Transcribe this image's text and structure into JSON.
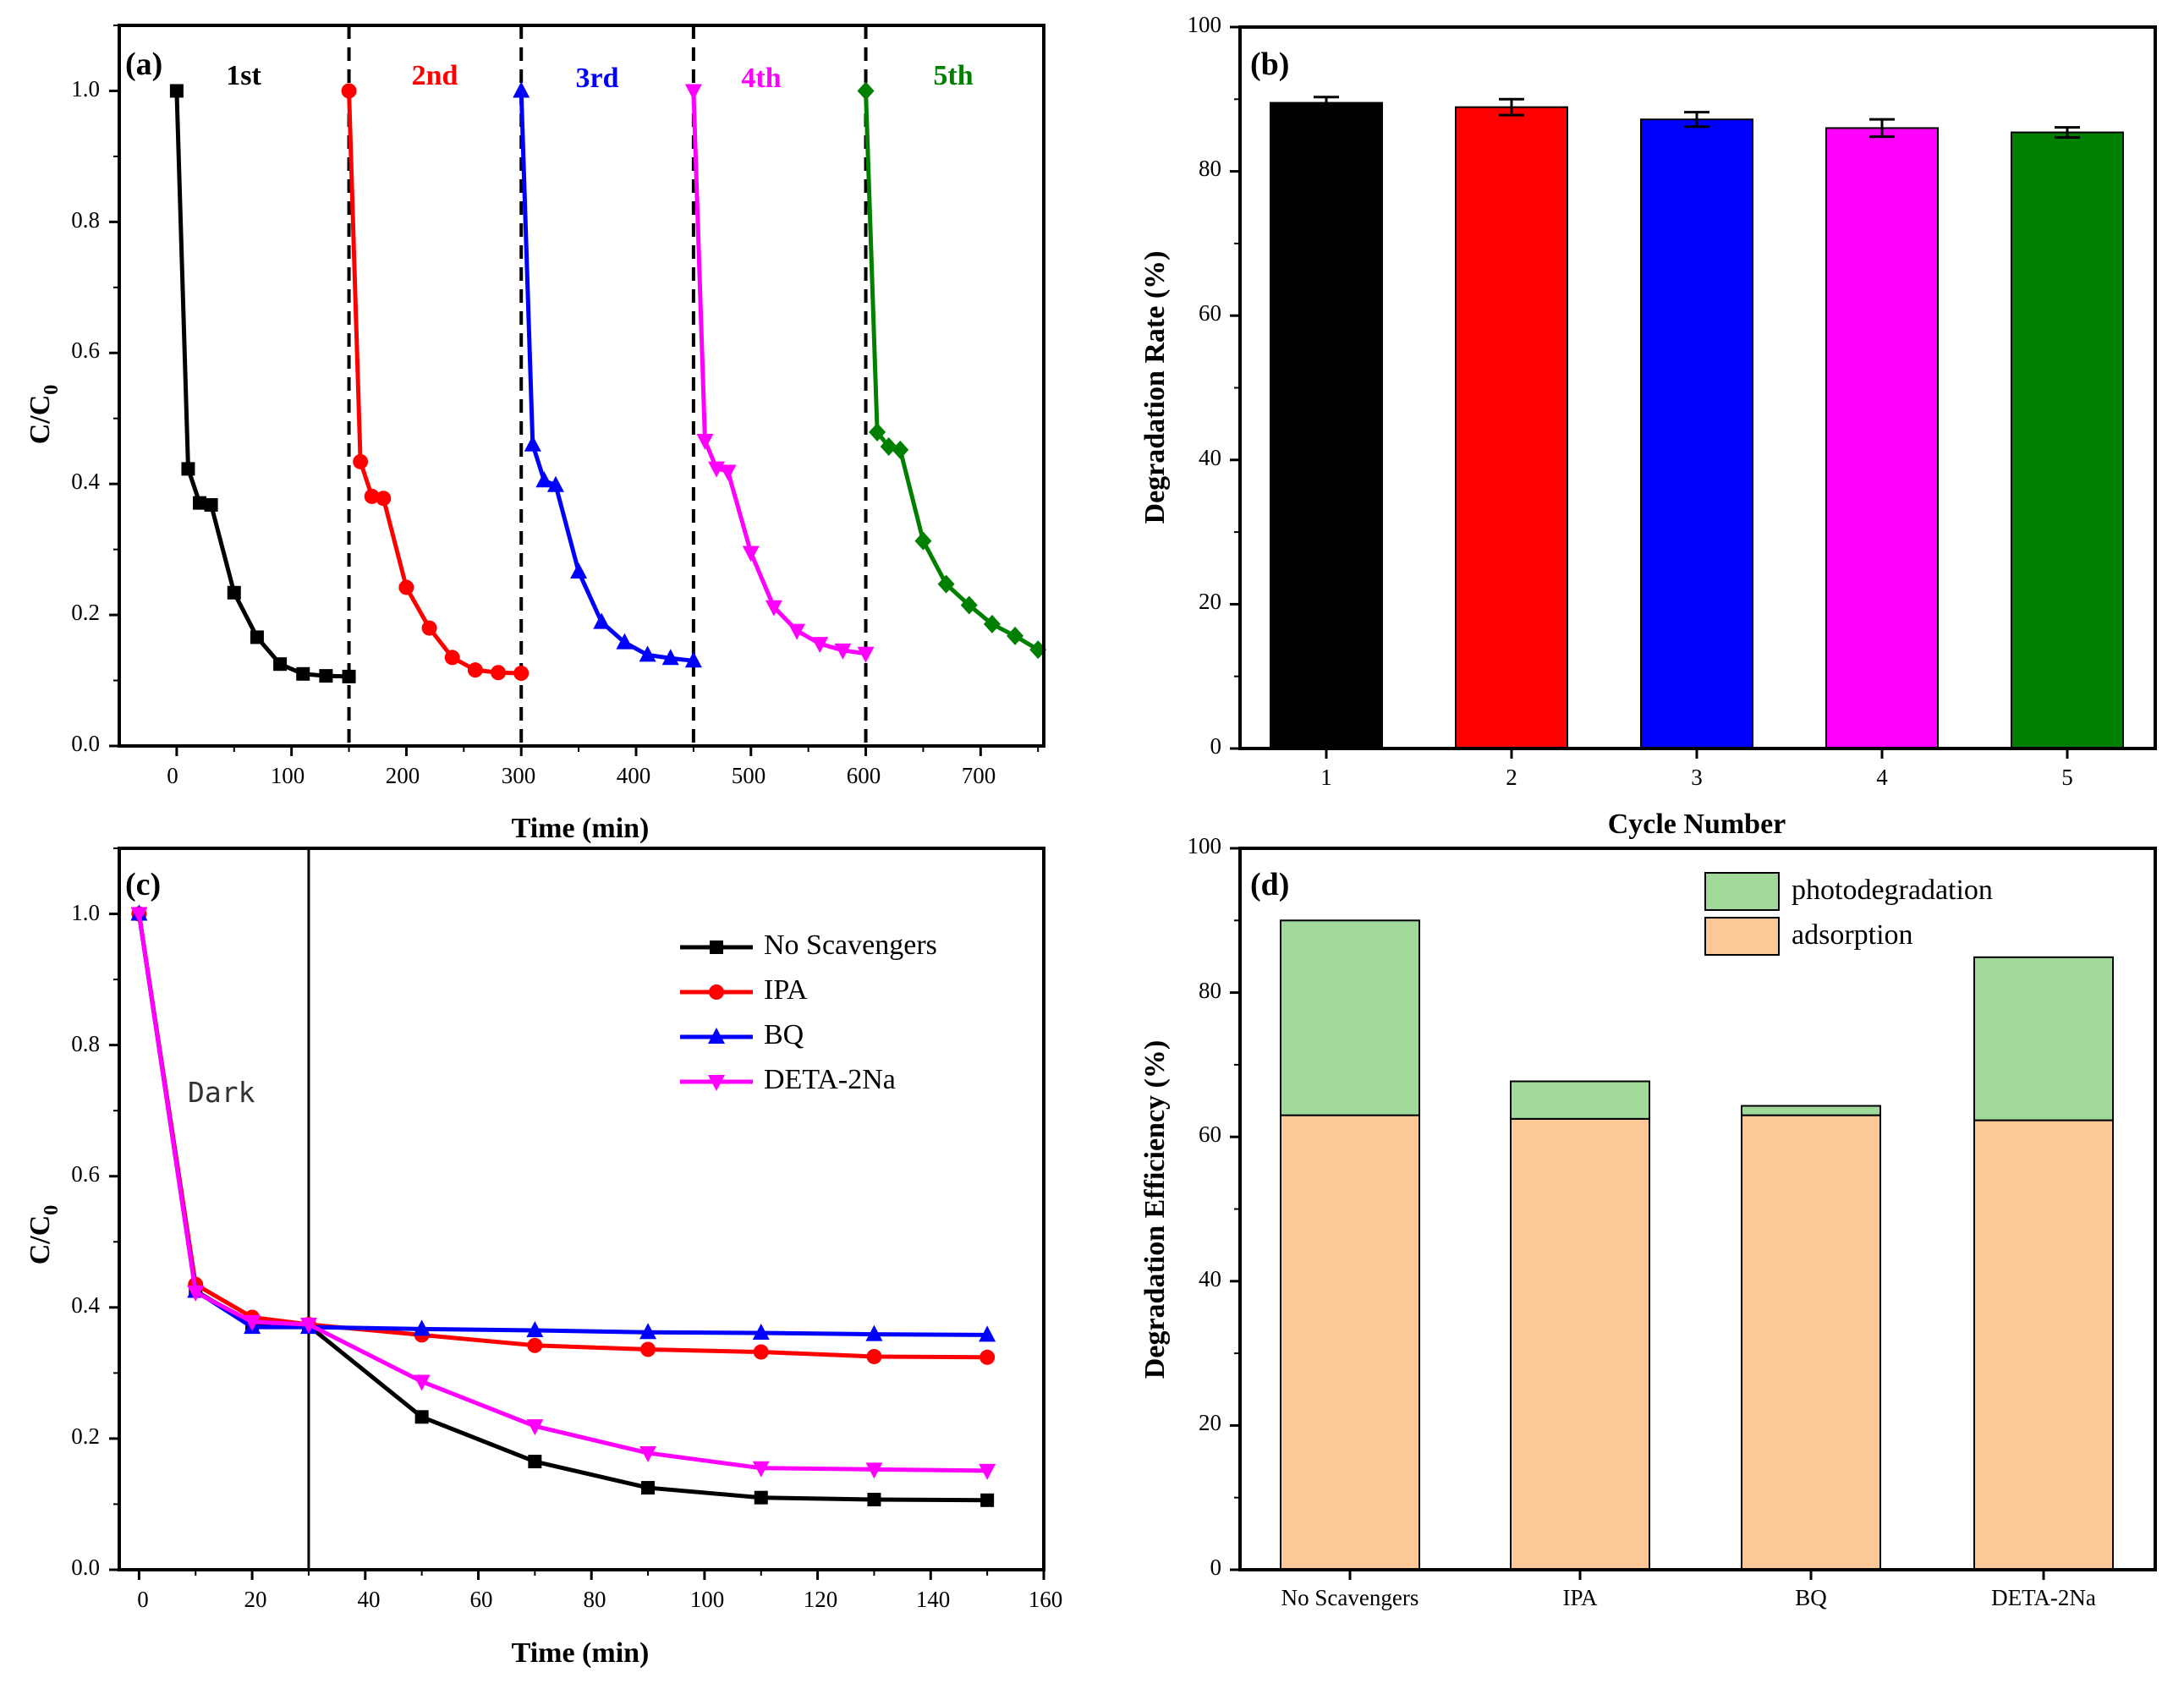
{
  "colors": {
    "cycle1": "#000000",
    "cycle2": "#ff0000",
    "cycle3": "#0000ff",
    "cycle4": "#ff00ff",
    "cycle5": "#007f00",
    "photodegradation": "#a1d99b",
    "adsorption": "#fcc898"
  },
  "chart_data": [
    {
      "id": "a",
      "panel_label": "(a)",
      "type": "line",
      "xlabel": "Time (min)",
      "ylabel_main": "C/C",
      "ylabel_sub": "0",
      "xlim": [
        -50,
        755
      ],
      "ylim": [
        0,
        1.1
      ],
      "xticks": [
        "0",
        "100",
        "200",
        "300",
        "400",
        "500",
        "600",
        "700"
      ],
      "yticks": [
        "0.0",
        "0.2",
        "0.4",
        "0.6",
        "0.8",
        "1.0"
      ],
      "dividers": [
        150,
        300,
        450,
        600
      ],
      "cycle_labels": [
        "1st",
        "2nd",
        "3rd",
        "4th",
        "5th"
      ],
      "series": [
        {
          "name": "1st",
          "color": "#000000",
          "marker": "square",
          "x": [
            0,
            10,
            20,
            30,
            50,
            70,
            90,
            110,
            130,
            150
          ],
          "y": [
            1.0,
            0.423,
            0.371,
            0.368,
            0.234,
            0.166,
            0.125,
            0.11,
            0.107,
            0.106
          ]
        },
        {
          "name": "2nd",
          "color": "#ff0000",
          "marker": "circle",
          "x": [
            150,
            160,
            170,
            180,
            200,
            220,
            240,
            260,
            280,
            300
          ],
          "y": [
            1.0,
            0.434,
            0.381,
            0.378,
            0.242,
            0.18,
            0.135,
            0.116,
            0.112,
            0.111
          ]
        },
        {
          "name": "3rd",
          "color": "#0000ff",
          "marker": "triangle-up",
          "x": [
            300,
            310,
            320,
            330,
            350,
            370,
            390,
            410,
            430,
            450
          ],
          "y": [
            1.0,
            0.46,
            0.405,
            0.398,
            0.266,
            0.189,
            0.158,
            0.139,
            0.134,
            0.13
          ]
        },
        {
          "name": "4th",
          "color": "#ff00ff",
          "marker": "triangle-down",
          "x": [
            450,
            460,
            470,
            480,
            500,
            520,
            540,
            560,
            580,
            600
          ],
          "y": [
            1.0,
            0.466,
            0.424,
            0.419,
            0.295,
            0.212,
            0.176,
            0.156,
            0.146,
            0.141
          ]
        },
        {
          "name": "5th",
          "color": "#007f00",
          "marker": "diamond",
          "x": [
            600,
            610,
            620,
            630,
            650,
            670,
            690,
            710,
            730,
            750
          ],
          "y": [
            1.0,
            0.479,
            0.457,
            0.452,
            0.313,
            0.247,
            0.215,
            0.186,
            0.168,
            0.147
          ]
        }
      ]
    },
    {
      "id": "b",
      "panel_label": "(b)",
      "type": "bar",
      "xlabel": "Cycle Number",
      "ylabel": "Degradation Rate (%)",
      "ylim": [
        0,
        100
      ],
      "categories": [
        "1",
        "2",
        "3",
        "4",
        "5"
      ],
      "yticks": [
        "0",
        "20",
        "40",
        "60",
        "80",
        "100"
      ],
      "values": [
        89.5,
        88.9,
        87.2,
        86.0,
        85.4
      ],
      "errors": [
        0.8,
        1.1,
        1.0,
        1.2,
        0.7
      ],
      "colors": [
        "#000000",
        "#ff0000",
        "#0000ff",
        "#ff00ff",
        "#007f00"
      ]
    },
    {
      "id": "c",
      "panel_label": "(c)",
      "type": "line",
      "xlabel": "Time (min)",
      "ylabel_main": "C/C",
      "ylabel_sub": "0",
      "xlim": [
        -3.5,
        160
      ],
      "ylim": [
        0,
        1.1
      ],
      "xticks": [
        "0",
        "20",
        "40",
        "60",
        "80",
        "100",
        "120",
        "140",
        "160"
      ],
      "yticks": [
        "0.0",
        "0.2",
        "0.4",
        "0.6",
        "0.8",
        "1.0"
      ],
      "divider": 30,
      "annotation": "Dark",
      "x": [
        0,
        10,
        20,
        30,
        50,
        70,
        90,
        110,
        130,
        150
      ],
      "series": [
        {
          "name": "No Scavengers",
          "color": "#000000",
          "marker": "square",
          "y": [
            1.0,
            0.425,
            0.375,
            0.372,
            0.233,
            0.165,
            0.125,
            0.11,
            0.107,
            0.106
          ]
        },
        {
          "name": "IPA",
          "color": "#ff0000",
          "marker": "circle",
          "y": [
            1.0,
            0.435,
            0.385,
            0.374,
            0.358,
            0.342,
            0.336,
            0.332,
            0.325,
            0.324
          ]
        },
        {
          "name": "BQ",
          "color": "#0000ff",
          "marker": "triangle-up",
          "y": [
            1.0,
            0.425,
            0.37,
            0.37,
            0.367,
            0.365,
            0.362,
            0.361,
            0.359,
            0.358
          ]
        },
        {
          "name": "DETA-2Na",
          "color": "#ff00ff",
          "marker": "triangle-down",
          "y": [
            1.0,
            0.423,
            0.378,
            0.374,
            0.287,
            0.219,
            0.178,
            0.155,
            0.153,
            0.151
          ]
        }
      ]
    },
    {
      "id": "d",
      "panel_label": "(d)",
      "type": "bar",
      "stacked": true,
      "xlabel": "",
      "ylabel": "Degradation Efficiency (%)",
      "ylim": [
        0,
        100
      ],
      "categories": [
        "No Scavengers",
        "IPA",
        "BQ",
        "DETA-2Na"
      ],
      "yticks": [
        "0",
        "20",
        "40",
        "60",
        "80",
        "100"
      ],
      "series": [
        {
          "name": "adsorption",
          "color": "#fcc898",
          "values": [
            63.0,
            62.5,
            63.0,
            62.3
          ]
        },
        {
          "name": "photodegradation",
          "color": "#a1d99b",
          "values": [
            27.0,
            5.2,
            1.3,
            22.6
          ]
        }
      ],
      "legend": [
        "photodegradation",
        "adsorption"
      ]
    }
  ]
}
